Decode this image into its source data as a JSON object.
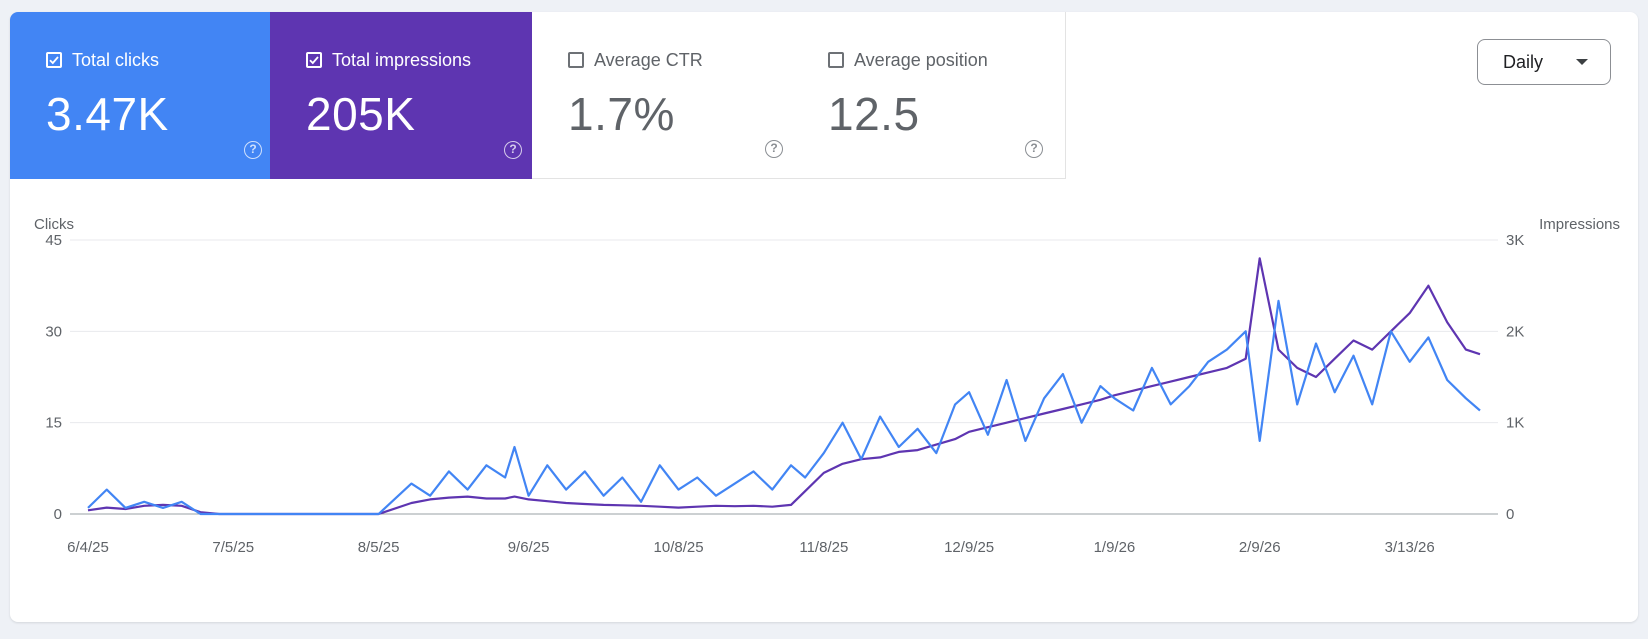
{
  "metrics": [
    {
      "label": "Total clicks",
      "value": "3.47K",
      "checked": true,
      "color": "#4285f4"
    },
    {
      "label": "Total impressions",
      "value": "205K",
      "checked": true,
      "color": "#5e35b1"
    },
    {
      "label": "Average CTR",
      "value": "1.7%",
      "checked": false,
      "color": "#ffffff"
    },
    {
      "label": "Average position",
      "value": "12.5",
      "checked": false,
      "color": "#ffffff"
    }
  ],
  "help_icon": "?",
  "period_select": {
    "value": "Daily",
    "icon": "arrow-drop-down-icon"
  },
  "chart_data": {
    "type": "line",
    "left_axis_title": "Clicks",
    "right_axis_title": "Impressions",
    "left_ticks": [
      "45",
      "30",
      "15",
      "0"
    ],
    "right_ticks": [
      "3K",
      "2K",
      "1K",
      "0"
    ],
    "ylim_left": [
      0,
      45
    ],
    "ylim_right": [
      0,
      3000
    ],
    "x_tick_labels": [
      "6/4/25",
      "7/5/25",
      "8/5/25",
      "9/6/25",
      "10/8/25",
      "11/8/25",
      "12/9/25",
      "1/9/26",
      "2/9/26",
      "3/13/26"
    ],
    "grid": true,
    "series": [
      {
        "name": "Total clicks",
        "axis": "left",
        "color": "#4285f4",
        "x": [
          "6/4/25",
          "6/8/25",
          "6/12/25",
          "6/16/25",
          "6/20/25",
          "6/24/25",
          "6/28/25",
          "7/2/25",
          "7/5/25",
          "7/20/25",
          "8/5/25",
          "8/12/25",
          "8/16/25",
          "8/20/25",
          "8/24/25",
          "8/28/25",
          "9/1/25",
          "9/3/25",
          "9/6/25",
          "9/10/25",
          "9/14/25",
          "9/18/25",
          "9/22/25",
          "9/26/25",
          "9/30/25",
          "10/4/25",
          "10/8/25",
          "10/12/25",
          "10/16/25",
          "10/20/25",
          "10/24/25",
          "10/28/25",
          "11/1/25",
          "11/4/25",
          "11/8/25",
          "11/12/25",
          "11/16/25",
          "11/20/25",
          "11/24/25",
          "11/28/25",
          "12/2/25",
          "12/6/25",
          "12/9/25",
          "12/13/25",
          "12/17/25",
          "12/21/25",
          "12/25/25",
          "12/29/25",
          "1/2/26",
          "1/6/26",
          "1/9/26",
          "1/13/26",
          "1/17/26",
          "1/21/26",
          "1/25/26",
          "1/29/26",
          "2/2/26",
          "2/6/26",
          "2/9/26",
          "2/13/26",
          "2/17/26",
          "2/21/26",
          "2/25/26",
          "3/1/26",
          "3/5/26",
          "3/9/26",
          "3/13/26",
          "3/17/26",
          "3/21/26",
          "3/25/26",
          "3/28/26"
        ],
        "values": [
          1,
          4,
          1,
          2,
          1,
          2,
          0,
          0,
          0,
          0,
          0,
          5,
          3,
          7,
          4,
          8,
          6,
          11,
          3,
          8,
          4,
          7,
          3,
          6,
          2,
          8,
          4,
          6,
          3,
          5,
          7,
          4,
          8,
          6,
          10,
          15,
          9,
          16,
          11,
          14,
          10,
          18,
          20,
          13,
          22,
          12,
          19,
          23,
          15,
          21,
          19,
          17,
          24,
          18,
          21,
          25,
          27,
          30,
          12,
          35,
          18,
          28,
          20,
          26,
          18,
          30,
          25,
          29,
          22,
          19,
          17
        ]
      },
      {
        "name": "Total impressions",
        "axis": "right",
        "color": "#5e35b1",
        "x": [
          "6/4/25",
          "6/8/25",
          "6/12/25",
          "6/16/25",
          "6/20/25",
          "6/24/25",
          "6/28/25",
          "7/2/25",
          "7/5/25",
          "7/20/25",
          "8/5/25",
          "8/12/25",
          "8/16/25",
          "8/20/25",
          "8/24/25",
          "8/28/25",
          "9/1/25",
          "9/3/25",
          "9/6/25",
          "9/10/25",
          "9/14/25",
          "9/18/25",
          "9/22/25",
          "9/26/25",
          "9/30/25",
          "10/4/25",
          "10/8/25",
          "10/12/25",
          "10/16/25",
          "10/20/25",
          "10/24/25",
          "10/28/25",
          "11/1/25",
          "11/4/25",
          "11/8/25",
          "11/12/25",
          "11/16/25",
          "11/20/25",
          "11/24/25",
          "11/28/25",
          "12/2/25",
          "12/6/25",
          "12/9/25",
          "12/13/25",
          "12/17/25",
          "12/21/25",
          "12/25/25",
          "12/29/25",
          "1/2/26",
          "1/6/26",
          "1/9/26",
          "1/13/26",
          "1/17/26",
          "1/21/26",
          "1/25/26",
          "1/29/26",
          "2/2/26",
          "2/6/26",
          "2/9/26",
          "2/13/26",
          "2/17/26",
          "2/21/26",
          "2/25/26",
          "3/1/26",
          "3/5/26",
          "3/9/26",
          "3/13/26",
          "3/17/26",
          "3/21/26",
          "3/25/26",
          "3/28/26"
        ],
        "values": [
          40,
          70,
          55,
          90,
          100,
          90,
          20,
          0,
          0,
          0,
          0,
          120,
          160,
          180,
          190,
          170,
          170,
          190,
          160,
          140,
          120,
          110,
          100,
          95,
          90,
          80,
          70,
          80,
          90,
          85,
          90,
          80,
          100,
          250,
          450,
          550,
          600,
          620,
          680,
          700,
          760,
          820,
          900,
          950,
          1000,
          1050,
          1100,
          1150,
          1200,
          1250,
          1300,
          1350,
          1400,
          1450,
          1500,
          1550,
          1600,
          1700,
          2800,
          1800,
          1600,
          1500,
          1700,
          1900,
          1800,
          2000,
          2200,
          2500,
          2100,
          1800,
          1750
        ]
      }
    ]
  }
}
